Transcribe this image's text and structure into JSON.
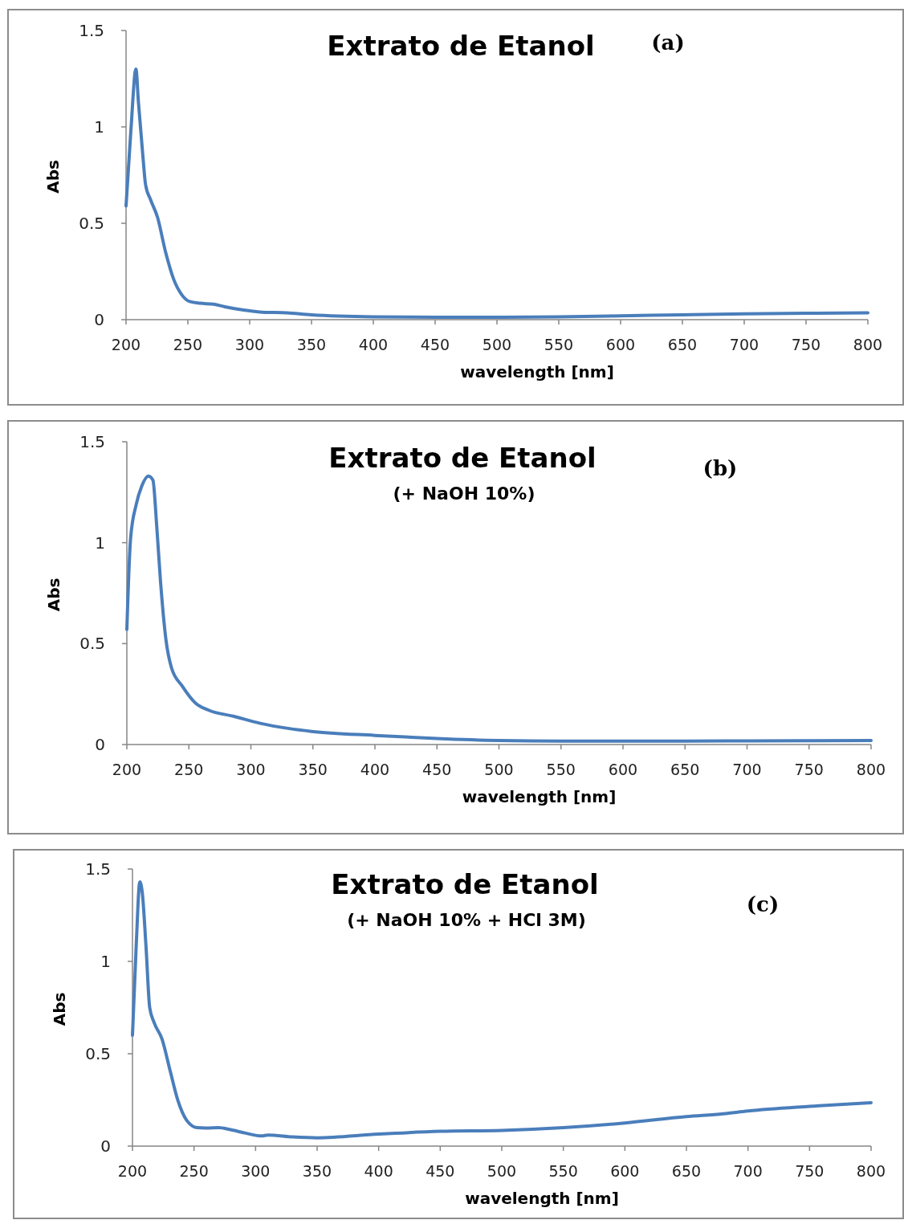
{
  "chart_data": [
    {
      "type": "line",
      "title": "Extrato de Etanol",
      "annotations": [
        "(a)"
      ],
      "xlabel": "wavelength [nm]",
      "ylabel": "Abs",
      "xlim": [
        200,
        800
      ],
      "ylim": [
        0,
        1.5
      ],
      "xticks": [
        200,
        250,
        300,
        350,
        400,
        450,
        500,
        550,
        600,
        650,
        700,
        750,
        800
      ],
      "yticks": [
        0,
        0.5,
        1,
        1.5
      ],
      "series": [
        {
          "color": "#4a7ebb",
          "x": [
            200,
            204,
            208,
            210,
            213.6,
            215.8,
            220,
            225.5,
            232,
            238.5,
            245,
            251.5,
            260,
            271,
            280,
            295,
            308,
            330,
            350,
            400,
            450,
            500,
            550,
            600,
            650,
            700,
            750,
            800
          ],
          "values": [
            0.59,
            0.99,
            1.3,
            1.13,
            0.85,
            0.7,
            0.62,
            0.53,
            0.35,
            0.21,
            0.13,
            0.094,
            0.085,
            0.08,
            0.067,
            0.05,
            0.04,
            0.035,
            0.025,
            0.015,
            0.013,
            0.012,
            0.015,
            0.02,
            0.025,
            0.03,
            0.033,
            0.035
          ]
        }
      ]
    },
    {
      "type": "line",
      "title": "Extrato de Etanol",
      "subtitle": "(+ NaOH 10%)",
      "annotations": [
        "(b)"
      ],
      "xlabel": "wavelength [nm]",
      "ylabel": "Abs",
      "xlim": [
        200,
        800
      ],
      "ylim": [
        0,
        1.5
      ],
      "xticks": [
        200,
        250,
        300,
        350,
        400,
        450,
        500,
        550,
        600,
        650,
        700,
        750,
        800
      ],
      "yticks": [
        0,
        0.5,
        1,
        1.5
      ],
      "series": [
        {
          "color": "#4a7ebb",
          "x": [
            200,
            203,
            207.6,
            212,
            217.4,
            221,
            224,
            227,
            231.5,
            236,
            244.6,
            255.4,
            266,
            286,
            307.6,
            330,
            349,
            400,
            450,
            500,
            550,
            600,
            650,
            700,
            750,
            800
          ],
          "values": [
            0.57,
            1.02,
            1.19,
            1.28,
            1.33,
            1.31,
            1.09,
            0.82,
            0.52,
            0.38,
            0.29,
            0.205,
            0.17,
            0.14,
            0.105,
            0.08,
            0.065,
            0.045,
            0.03,
            0.02,
            0.017,
            0.017,
            0.017,
            0.018,
            0.019,
            0.02
          ]
        }
      ]
    },
    {
      "type": "line",
      "title": "Extrato de Etanol",
      "subtitle": "(+ NaOH 10%  + HCl 3M)",
      "annotations": [
        "(c)"
      ],
      "xlabel": "wavelength [nm]",
      "ylabel": "Abs",
      "xlim": [
        200,
        800
      ],
      "ylim": [
        0,
        1.5
      ],
      "xticks": [
        200,
        250,
        300,
        350,
        400,
        450,
        500,
        550,
        600,
        650,
        700,
        750,
        800
      ],
      "yticks": [
        0,
        0.5,
        1,
        1.5
      ],
      "series": [
        {
          "color": "#4a7ebb",
          "x": [
            200,
            203,
            206,
            208,
            211,
            214,
            217.5,
            224,
            230.7,
            237,
            244,
            252.6,
            260,
            270,
            279,
            292,
            305,
            310,
            330,
            350,
            400,
            450,
            500,
            550,
            600,
            650,
            680,
            700,
            750,
            800
          ],
          "values": [
            0.6,
            1.08,
            1.43,
            1.37,
            1.08,
            0.75,
            0.67,
            0.58,
            0.405,
            0.245,
            0.14,
            0.1,
            0.098,
            0.1,
            0.09,
            0.07,
            0.055,
            0.06,
            0.05,
            0.045,
            0.065,
            0.08,
            0.085,
            0.1,
            0.125,
            0.16,
            0.175,
            0.19,
            0.215,
            0.235
          ]
        }
      ]
    }
  ]
}
